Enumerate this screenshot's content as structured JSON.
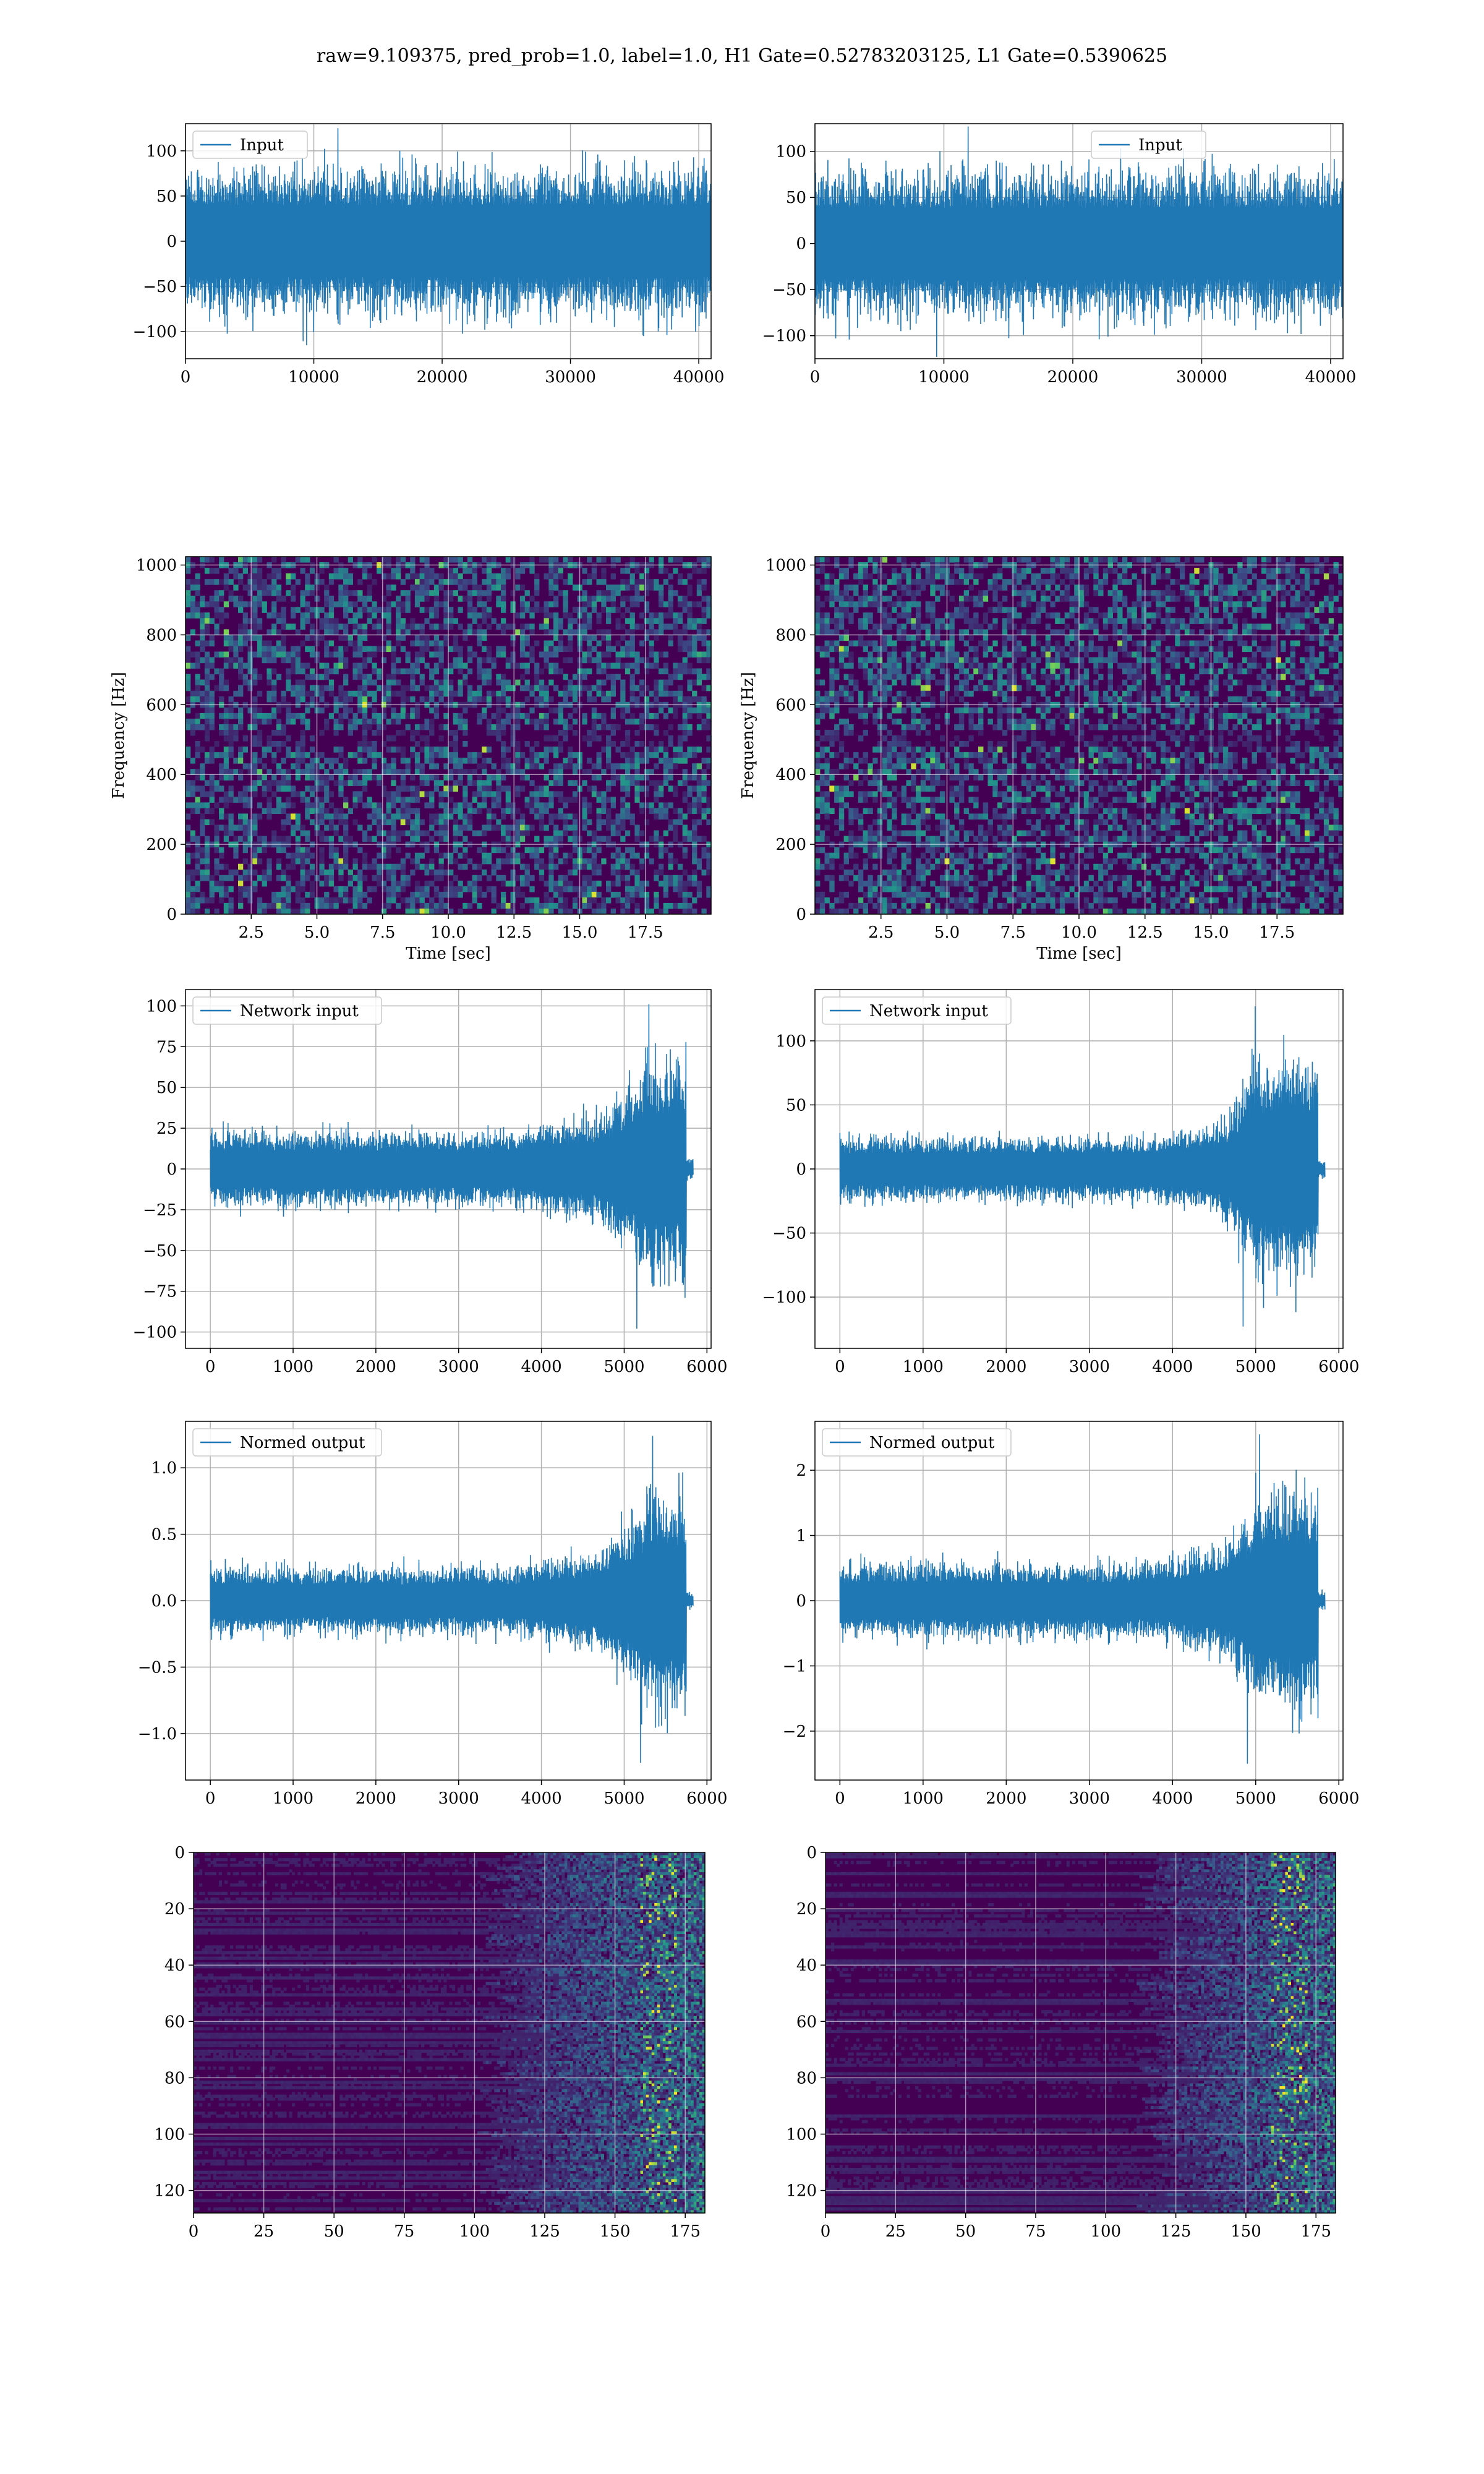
{
  "figure_title": "raw=9.109375, pred_prob=1.0, label=1.0, H1 Gate=0.52783203125, L1 Gate=0.5390625",
  "colors": {
    "series": "#1f77b4",
    "grid": "#b0b0b0",
    "viridis_low": "#440154",
    "viridis_mid": "#21918c",
    "viridis_high": "#fde725"
  },
  "chart_data": [
    {
      "id": "h1-input",
      "type": "line",
      "legend": "Input",
      "xlim": [
        0,
        40960
      ],
      "ylim": [
        -130,
        130
      ],
      "xticks": [
        0,
        10000,
        20000,
        30000,
        40000
      ],
      "yticks": [
        -100,
        -50,
        0,
        50,
        100
      ],
      "envelope": {
        "typical_amplitude": 72,
        "peak_max": 125,
        "peak_min": -115
      },
      "grid": true,
      "legend_loc": "upper left"
    },
    {
      "id": "l1-input",
      "type": "line",
      "legend": "Input",
      "xlim": [
        0,
        40960
      ],
      "ylim": [
        -125,
        130
      ],
      "xticks": [
        0,
        10000,
        20000,
        30000,
        40000
      ],
      "yticks": [
        -100,
        -50,
        0,
        50,
        100
      ],
      "envelope": {
        "typical_amplitude": 70,
        "peak_max": 127,
        "peak_min": -123
      },
      "grid": true,
      "legend_loc": "upper center"
    },
    {
      "id": "h1-spectrogram",
      "type": "heatmap",
      "xlabel": "Time [sec]",
      "ylabel": "Frequency [Hz]",
      "xlim": [
        0,
        20
      ],
      "ylim": [
        0,
        1024
      ],
      "xticks": [
        2.5,
        5.0,
        7.5,
        10.0,
        12.5,
        15.0,
        17.5
      ],
      "xtick_labels": [
        "2.5",
        "5.0",
        "7.5",
        "10.0",
        "12.5",
        "15.0",
        "17.5"
      ],
      "yticks": [
        0,
        200,
        400,
        600,
        800,
        1000
      ],
      "colormap": "viridis",
      "grid": true
    },
    {
      "id": "l1-spectrogram",
      "type": "heatmap",
      "xlabel": "Time [sec]",
      "ylabel": "Frequency [Hz]",
      "xlim": [
        0,
        20
      ],
      "ylim": [
        0,
        1024
      ],
      "xticks": [
        2.5,
        5.0,
        7.5,
        10.0,
        12.5,
        15.0,
        17.5
      ],
      "xtick_labels": [
        "2.5",
        "5.0",
        "7.5",
        "10.0",
        "12.5",
        "15.0",
        "17.5"
      ],
      "yticks": [
        0,
        200,
        400,
        600,
        800,
        1000
      ],
      "colormap": "viridis",
      "grid": true
    },
    {
      "id": "h1-network-input",
      "type": "line",
      "legend": "Network input",
      "xlim": [
        -300,
        6050
      ],
      "ylim": [
        -110,
        110
      ],
      "xticks": [
        0,
        1000,
        2000,
        3000,
        4000,
        5000,
        6000
      ],
      "yticks": [
        -100,
        -75,
        -50,
        -25,
        0,
        25,
        50,
        75,
        100
      ],
      "envelope": {
        "baseline_amplitude": 20,
        "chirp_start": 4400,
        "chirp_peak_at": 5300,
        "peak_max": 101,
        "peak_min": -98,
        "signal_end": 5750,
        "tail_end": 5830
      },
      "grid": true,
      "legend_loc": "upper left"
    },
    {
      "id": "l1-network-input",
      "type": "line",
      "legend": "Network input",
      "xlim": [
        -300,
        6050
      ],
      "ylim": [
        -140,
        140
      ],
      "xticks": [
        0,
        1000,
        2000,
        3000,
        4000,
        5000,
        6000
      ],
      "yticks": [
        -100,
        -50,
        0,
        50,
        100
      ],
      "envelope": {
        "baseline_amplitude": 22,
        "chirp_start": 4400,
        "chirp_peak_at": 5000,
        "peak_max": 127,
        "peak_min": -123,
        "signal_end": 5750,
        "tail_end": 5830
      },
      "grid": true,
      "legend_loc": "upper left"
    },
    {
      "id": "h1-normed-output",
      "type": "line",
      "legend": "Normed output",
      "xlim": [
        -300,
        6050
      ],
      "ylim": [
        -1.35,
        1.35
      ],
      "xticks": [
        0,
        1000,
        2000,
        3000,
        4000,
        5000,
        6000
      ],
      "yticks": [
        -1.0,
        -0.5,
        0.0,
        0.5,
        1.0
      ],
      "ytick_labels": [
        "−1.0",
        "−0.5",
        "0.0",
        "0.5",
        "1.0"
      ],
      "envelope": {
        "baseline_amplitude": 0.22,
        "chirp_start": 4400,
        "chirp_peak_at": 5350,
        "peak_max": 1.24,
        "peak_min": -1.22,
        "signal_end": 5750,
        "tail_end": 5830
      },
      "grid": true,
      "legend_loc": "upper left"
    },
    {
      "id": "l1-normed-output",
      "type": "line",
      "legend": "Normed output",
      "xlim": [
        -300,
        6050
      ],
      "ylim": [
        -2.75,
        2.75
      ],
      "xticks": [
        0,
        1000,
        2000,
        3000,
        4000,
        5000,
        6000
      ],
      "yticks": [
        -2,
        -1,
        0,
        1,
        2
      ],
      "envelope": {
        "baseline_amplitude": 0.5,
        "chirp_start": 4400,
        "chirp_peak_at": 5050,
        "peak_max": 2.55,
        "peak_min": -2.5,
        "signal_end": 5750,
        "tail_end": 5830
      },
      "grid": true,
      "legend_loc": "upper left"
    },
    {
      "id": "h1-feature-map",
      "type": "heatmap",
      "xlim": [
        0,
        182
      ],
      "ylim": [
        128,
        0
      ],
      "xticks": [
        0,
        25,
        50,
        75,
        100,
        125,
        150,
        175
      ],
      "yticks": [
        0,
        20,
        40,
        60,
        80,
        100,
        120
      ],
      "colormap": "viridis",
      "grid": true,
      "active_from_column": 115
    },
    {
      "id": "l1-feature-map",
      "type": "heatmap",
      "xlim": [
        0,
        182
      ],
      "ylim": [
        128,
        0
      ],
      "xticks": [
        0,
        25,
        50,
        75,
        100,
        125,
        150,
        175
      ],
      "yticks": [
        0,
        20,
        40,
        60,
        80,
        100,
        120
      ],
      "colormap": "viridis",
      "grid": true,
      "active_from_column": 125
    }
  ]
}
